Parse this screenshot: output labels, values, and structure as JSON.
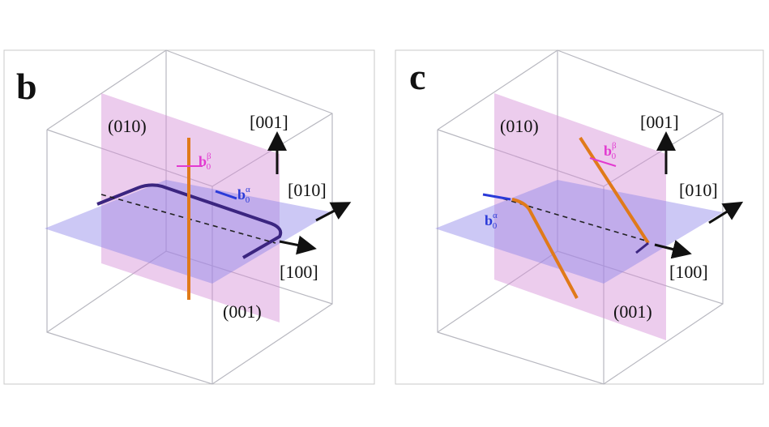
{
  "panels": [
    {
      "label": "b",
      "plane_labels": [
        "(010)",
        "(001)"
      ],
      "directions": [
        "[001]",
        "[010]",
        "[100]"
      ],
      "burgers": [
        {
          "base": "b",
          "sub": "0",
          "sup": "β"
        },
        {
          "base": "b",
          "sub": "0",
          "sup": "α"
        }
      ]
    },
    {
      "label": "c",
      "plane_labels": [
        "(010)",
        "(001)"
      ],
      "directions": [
        "[001]",
        "[010]",
        "[100]"
      ],
      "burgers": [
        {
          "base": "b",
          "sub": "0",
          "sup": "β"
        },
        {
          "base": "b",
          "sub": "0",
          "sup": "α"
        }
      ]
    }
  ]
}
